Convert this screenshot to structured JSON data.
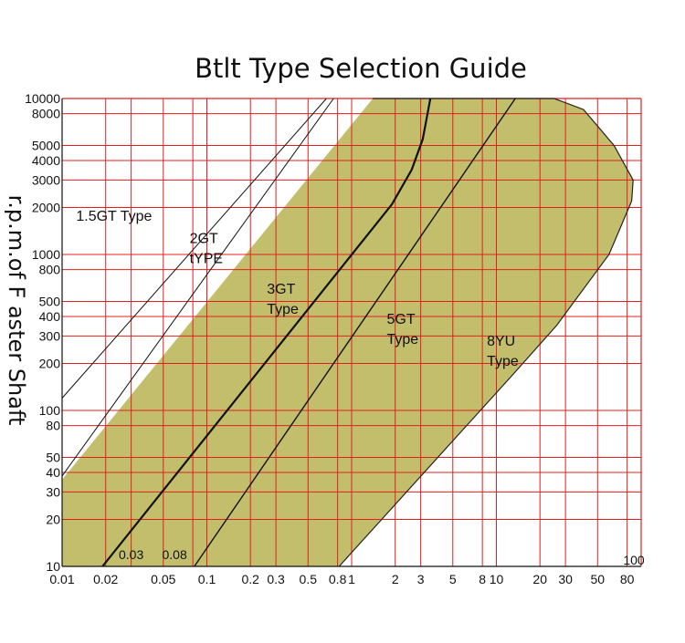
{
  "chart_data": {
    "type": "area",
    "title": "Btlt Type  Selection Guide",
    "ylabel": "r.p.m.of F aster Shaft",
    "xlabel": "",
    "x_scale": "log",
    "y_scale": "log",
    "xlim": [
      0.01,
      100
    ],
    "ylim": [
      10,
      10000
    ],
    "x_ticks": [
      "0.01",
      "0.02",
      "0.05",
      "0.1",
      "0.2",
      "0.3",
      "0.5",
      "0.8",
      "1",
      "2",
      "3",
      "5",
      "8",
      "10",
      "20",
      "30",
      "50",
      "80",
      "100"
    ],
    "y_ticks": [
      "10",
      "20",
      "30",
      "40",
      "50",
      "80",
      "100",
      "200",
      "300",
      "400",
      "500",
      "800",
      "1000",
      "2000",
      "3000",
      "4000",
      "5000",
      "8000",
      "10000"
    ],
    "x_gridlines": [
      0.02,
      0.03,
      0.05,
      0.08,
      0.1,
      0.2,
      0.3,
      0.5,
      0.8,
      1,
      2,
      3,
      5,
      8,
      10,
      20,
      30,
      50,
      80
    ],
    "y_gridlines": [
      20,
      30,
      40,
      50,
      80,
      100,
      200,
      300,
      400,
      500,
      800,
      1000,
      2000,
      3000,
      4000,
      5000,
      8000
    ],
    "grid": true,
    "grid_color": "#e0201f",
    "fill_color": "#c2be6c",
    "series": [
      {
        "name": "1.5GT Type",
        "label": "1.5GT Type",
        "type": "line",
        "points": [
          [
            0.01,
            120
          ],
          [
            0.67,
            10000
          ]
        ]
      },
      {
        "name": "2GT tYPE",
        "label": "2GT\ntYPE",
        "type": "line",
        "points": [
          [
            0.01,
            38
          ],
          [
            0.75,
            10000
          ]
        ]
      },
      {
        "name": "3GT Type",
        "label": "3GT\nType",
        "type": "line",
        "points": [
          [
            0.019,
            10
          ],
          [
            1.9,
            2100
          ],
          [
            2.6,
            3500
          ],
          [
            3.1,
            5500
          ],
          [
            3.5,
            10000
          ]
        ]
      },
      {
        "name": "5GT Type",
        "label": "5GT\nType",
        "type": "line",
        "points": [
          [
            0.082,
            10
          ],
          [
            13.5,
            10000
          ]
        ]
      },
      {
        "name": "8YU Type",
        "label": "8YU\nType",
        "type": "boundary",
        "points": [
          [
            0.01,
            36
          ],
          [
            1.4,
            10000
          ],
          [
            19,
            10000
          ],
          [
            25,
            10000
          ],
          [
            40,
            8500
          ],
          [
            65,
            5000
          ],
          [
            88,
            3000
          ],
          [
            86,
            2200
          ],
          [
            60,
            1000
          ],
          [
            26,
            350
          ],
          [
            13,
            170
          ],
          [
            0.82,
            10
          ],
          [
            0.01,
            10
          ]
        ]
      }
    ],
    "annotations": [
      {
        "text": "0.03",
        "x": 0.03,
        "y": 10
      },
      {
        "text": "0.08",
        "x": 0.08,
        "y": 10
      },
      {
        "text": "100",
        "x": 100,
        "y": 10
      }
    ]
  }
}
